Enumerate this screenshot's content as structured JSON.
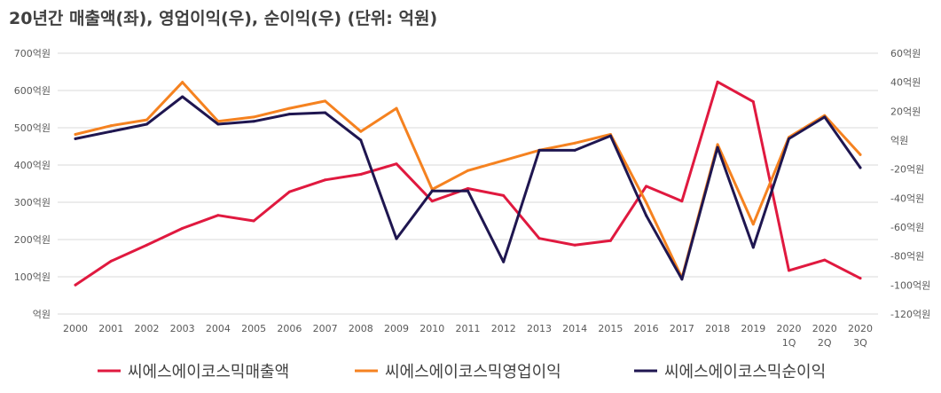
{
  "chart_data": {
    "type": "line",
    "title": "20년간 매출액(좌), 영업이익(우), 순이익(우) (단위: 억원)",
    "categories": [
      [
        "2000"
      ],
      [
        "2001"
      ],
      [
        "2002"
      ],
      [
        "2003"
      ],
      [
        "2004"
      ],
      [
        "2005"
      ],
      [
        "2006"
      ],
      [
        "2007"
      ],
      [
        "2008"
      ],
      [
        "2009"
      ],
      [
        "2010"
      ],
      [
        "2011"
      ],
      [
        "2012"
      ],
      [
        "2013"
      ],
      [
        "2014"
      ],
      [
        "2015"
      ],
      [
        "2016"
      ],
      [
        "2017"
      ],
      [
        "2018"
      ],
      [
        "2019"
      ],
      [
        "2020",
        "1Q"
      ],
      [
        "2020",
        "2Q"
      ],
      [
        "2020",
        "3Q"
      ]
    ],
    "left_axis": {
      "ticks": [
        0,
        100,
        200,
        300,
        400,
        500,
        600,
        700
      ],
      "tick_labels": [
        "억원",
        "100억원",
        "200억원",
        "300억원",
        "400억원",
        "500억원",
        "600억원",
        "700억원"
      ],
      "ylim": [
        0,
        700
      ]
    },
    "right_axis": {
      "ticks": [
        -120,
        -100,
        -80,
        -60,
        -40,
        -20,
        0,
        20,
        40,
        60
      ],
      "tick_labels": [
        "-120억원",
        "-100억원",
        "-80억원",
        "-60억원",
        "-40억원",
        "-20억원",
        "억원",
        "20억원",
        "40억원",
        "60억원"
      ],
      "ylim": [
        -120,
        60
      ]
    },
    "grid": true,
    "legend_position": "bottom",
    "series": [
      {
        "name": "씨에스에이코스믹매출액",
        "axis": "left",
        "color": "#e0193f",
        "values": [
          78,
          142,
          185,
          230,
          265,
          250,
          328,
          360,
          375,
          403,
          303,
          337,
          318,
          203,
          185,
          197,
          343,
          303,
          623,
          570,
          117,
          145,
          96
        ]
      },
      {
        "name": "씨에스에이코스믹영업이익",
        "axis": "right",
        "color": "#f58220",
        "values": [
          4,
          10,
          14,
          40,
          13,
          16,
          22,
          27,
          6,
          22,
          -34,
          -21,
          -14,
          -7,
          -2,
          4,
          -43,
          -95,
          -3,
          -58,
          2,
          17,
          -10
        ]
      },
      {
        "name": "씨에스에이코스믹순이익",
        "axis": "right",
        "color": "#1f1650",
        "values": [
          1,
          6,
          11,
          30,
          11,
          13,
          18,
          19,
          0,
          -68,
          -35,
          -35,
          -84,
          -7,
          -7,
          3,
          -52,
          -96,
          -5,
          -74,
          1,
          16,
          -19
        ]
      }
    ]
  }
}
